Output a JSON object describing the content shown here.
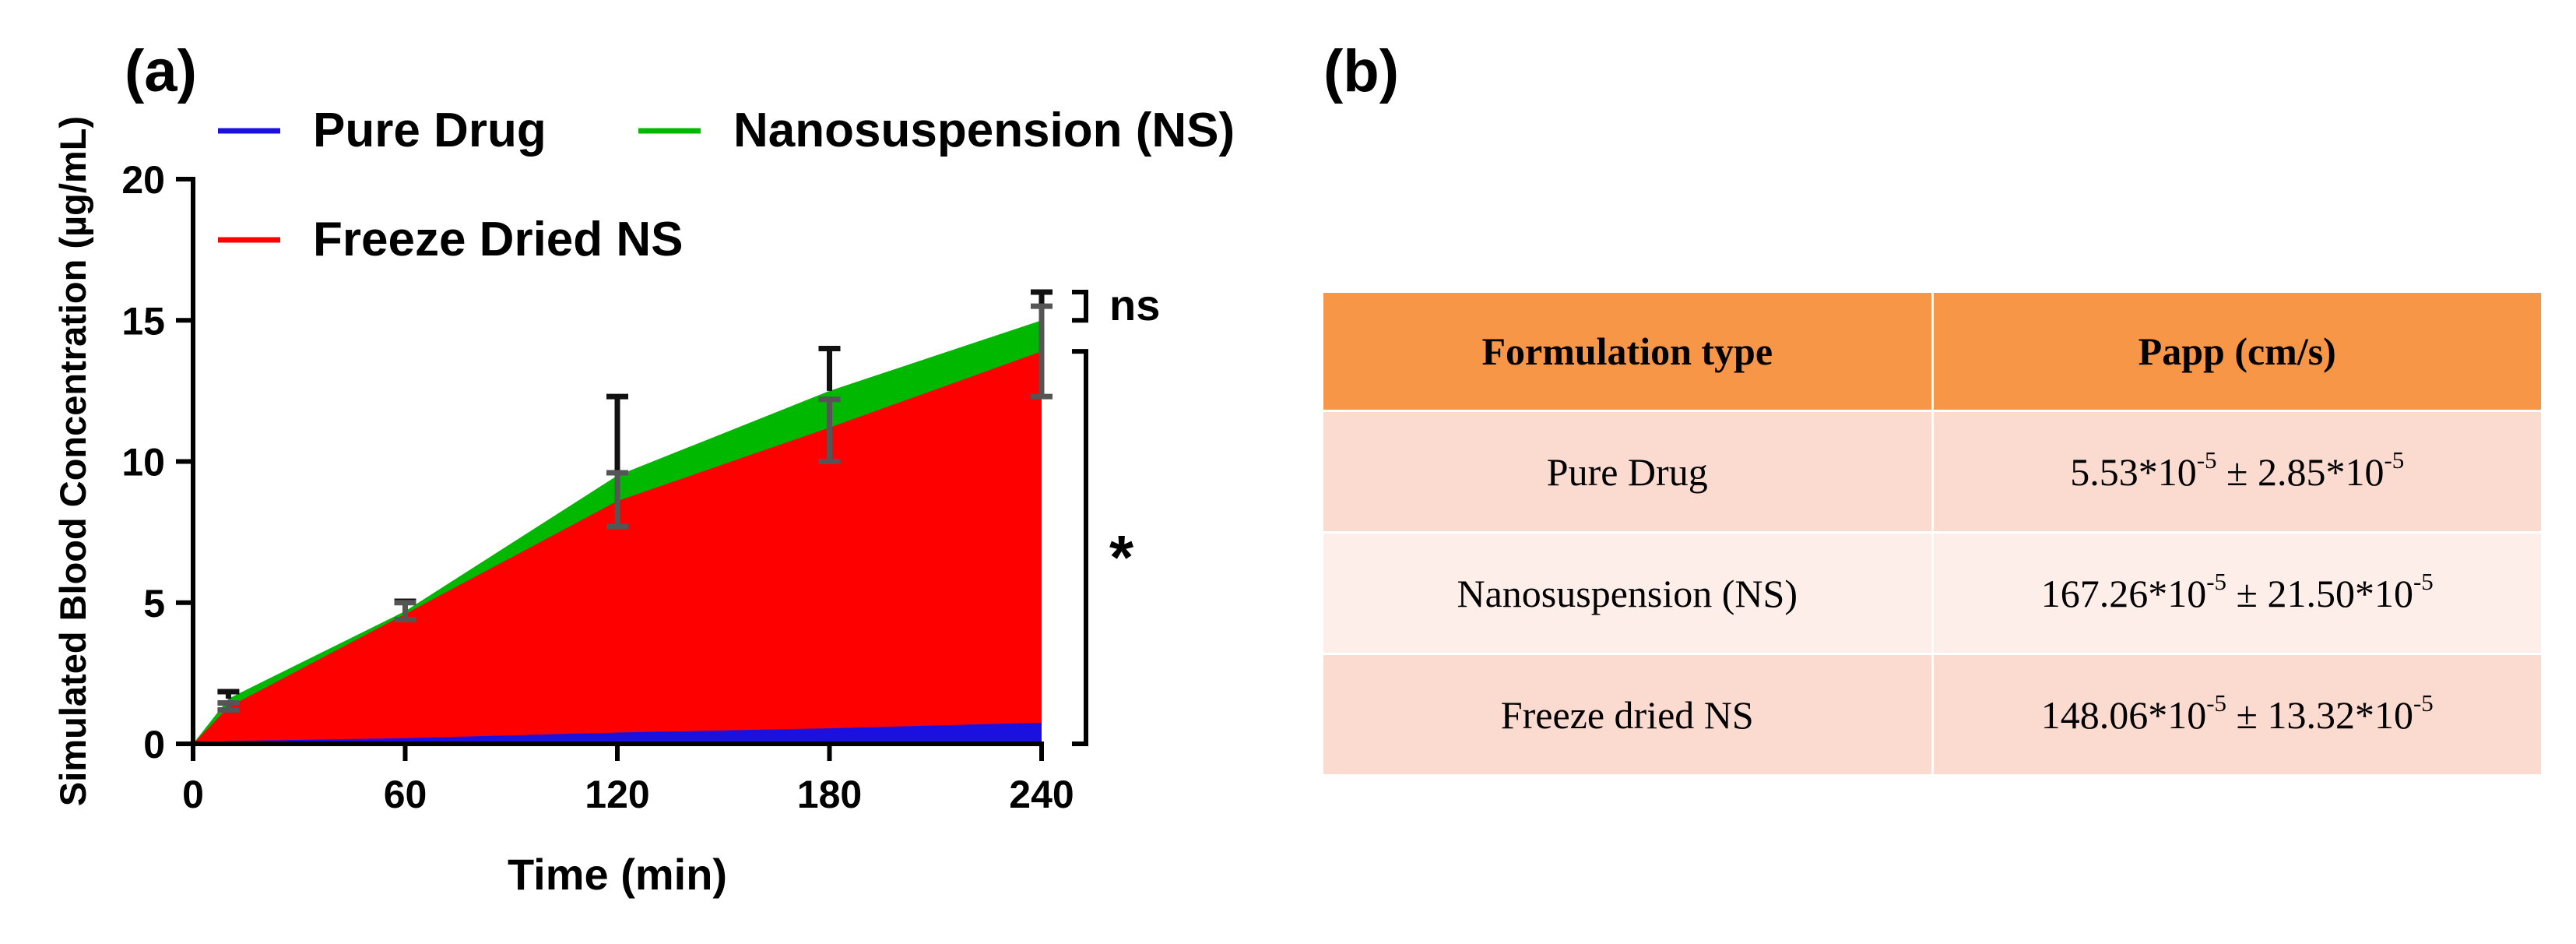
{
  "panels": {
    "a": "(a)",
    "b": "(b)"
  },
  "chart_data": {
    "type": "area",
    "xlabel": "Time (min)",
    "ylabel": "Simulated Blood Concentration (µg/mL)",
    "xlim": [
      0,
      240
    ],
    "ylim": [
      0,
      20
    ],
    "xticks": [
      0,
      60,
      120,
      180,
      240
    ],
    "yticks": [
      0,
      5,
      10,
      15,
      20
    ],
    "grid": false,
    "legend_position": "top-left",
    "series": [
      {
        "name": "Nanosuspension (NS)",
        "color": "#00b800",
        "x": [
          0,
          10,
          60,
          120,
          180,
          240
        ],
        "values": [
          0,
          1.6,
          4.7,
          9.5,
          12.5,
          15.0
        ],
        "error_high": [
          0,
          1.85,
          5.05,
          12.3,
          14.0,
          16.0
        ],
        "error_low": [
          0,
          1.6,
          4.7,
          9.5,
          12.5,
          15.0
        ],
        "error_color": "#111111"
      },
      {
        "name": "Freeze Dried NS",
        "color": "#ff0000",
        "x": [
          0,
          10,
          60,
          120,
          180,
          240
        ],
        "values": [
          0,
          1.3,
          4.6,
          8.6,
          11.2,
          13.9
        ],
        "error_high": [
          0,
          1.45,
          5.0,
          9.6,
          12.2,
          15.5
        ],
        "error_low": [
          0,
          1.2,
          4.4,
          7.7,
          10.0,
          12.3
        ],
        "error_color": "#555555"
      },
      {
        "name": "Pure Drug",
        "color": "#1a10e0",
        "x": [
          0,
          10,
          60,
          120,
          180,
          240
        ],
        "values": [
          0,
          0.1,
          0.2,
          0.4,
          0.55,
          0.75
        ]
      }
    ],
    "legend": [
      "Pure Drug",
      "Nanosuspension (NS)",
      "Freeze Dried NS"
    ],
    "annotations": [
      {
        "text": "ns",
        "from": 15.0,
        "to": 16.0
      },
      {
        "text": "*",
        "from": 0,
        "to": 13.9
      }
    ]
  },
  "table": {
    "header_color": "#f79646",
    "row_colors": [
      "#fbdbd0",
      "#fdeee9",
      "#fbdbd0"
    ],
    "headers": [
      "Formulation type",
      "Papp (cm/s)"
    ],
    "rows": [
      {
        "type": "Pure Drug",
        "v1": "5.53*10",
        "e1": "-5",
        "pm": " ± ",
        "v2": "2.85*10",
        "e2": "-5"
      },
      {
        "type": "Nanosuspension (NS)",
        "v1": "167.26*10",
        "e1": "-5",
        "pm": " ± ",
        "v2": "21.50*10",
        "e2": "-5"
      },
      {
        "type": "Freeze dried  NS",
        "v1": "148.06*10",
        "e1": "-5",
        "pm": " ± ",
        "v2": "13.32*10",
        "e2": "-5"
      }
    ]
  }
}
